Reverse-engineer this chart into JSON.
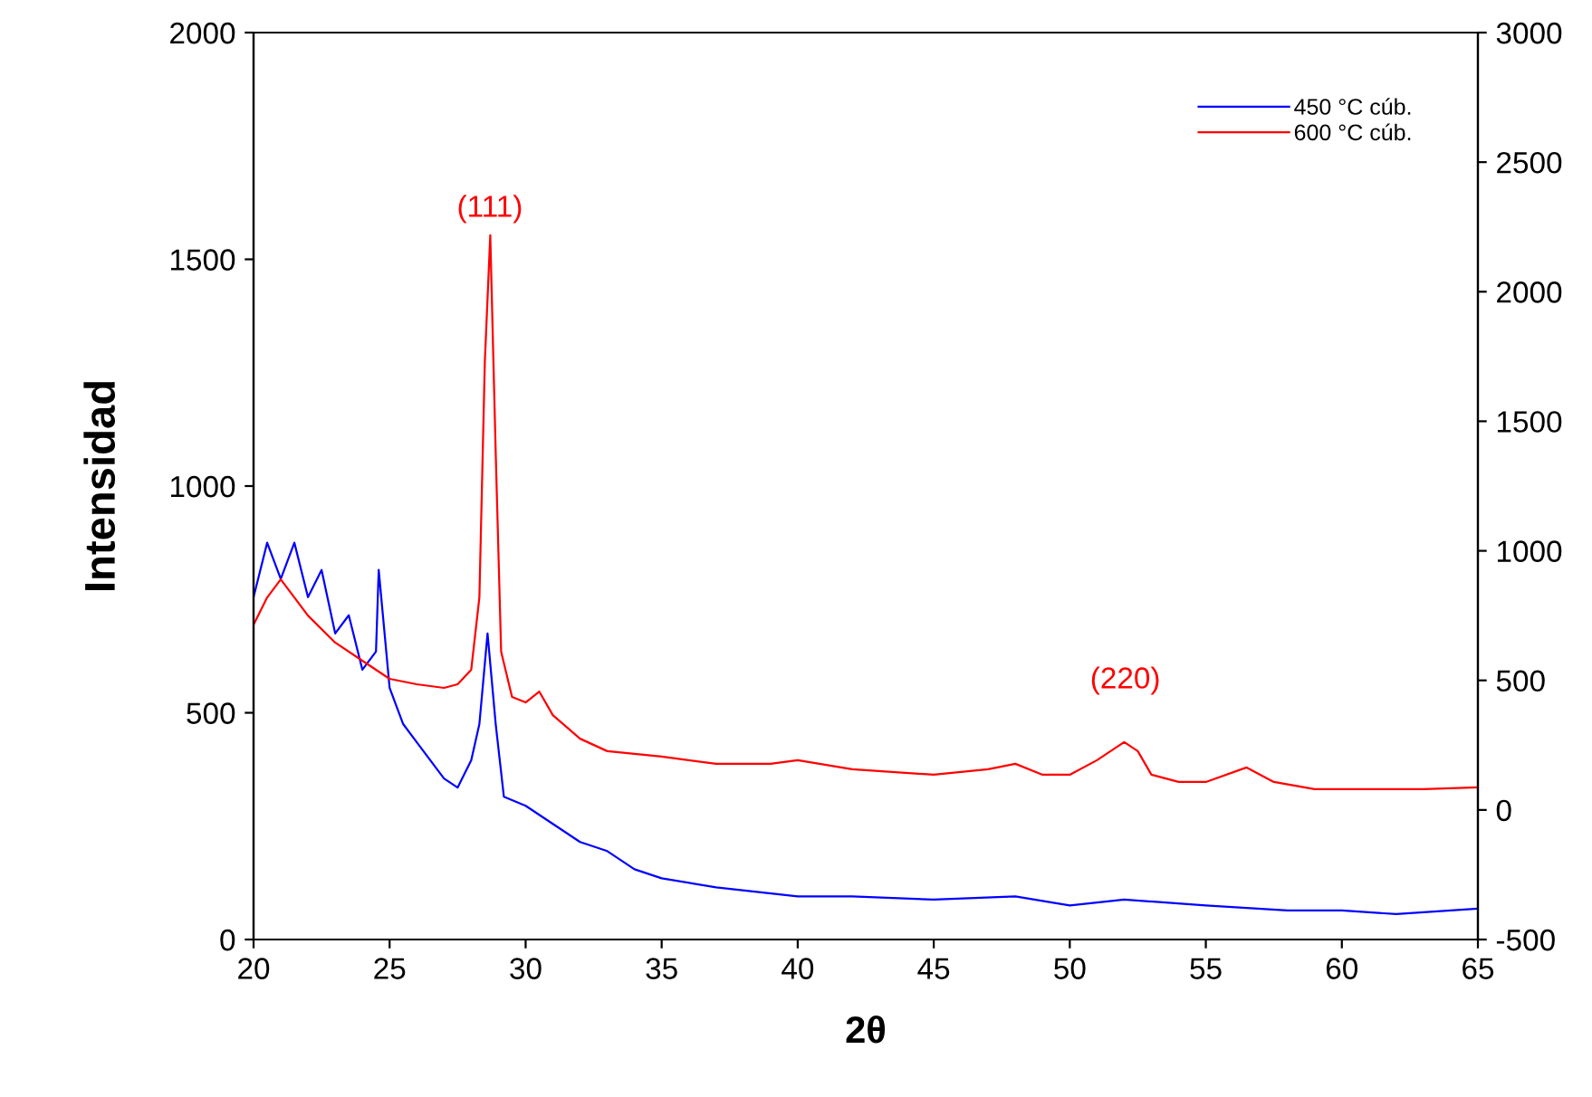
{
  "chart_data": {
    "type": "line",
    "xlabel": "2θ",
    "ylabel": "Intensidad",
    "xlim": [
      20,
      65
    ],
    "xticks": [
      20,
      25,
      30,
      35,
      40,
      45,
      50,
      55,
      60,
      65
    ],
    "ylim": [
      0,
      2000
    ],
    "yticks": [
      0,
      500,
      1000,
      1500,
      2000
    ],
    "y2lim": [
      -500,
      3000
    ],
    "y2ticks": [
      -500,
      0,
      500,
      1000,
      1500,
      2000,
      2500,
      3000
    ],
    "legend": "top right",
    "grid": false,
    "marker": "none",
    "line_style": "solid",
    "annotations": [
      "(111)",
      "(220)"
    ],
    "series": [
      {
        "name": "450 °C cúb.",
        "color": "#0000ff",
        "x": [
          20,
          20.5,
          21,
          21.5,
          22,
          22.5,
          23,
          23.5,
          24,
          24.5,
          24.6,
          25,
          25.5,
          26,
          26.5,
          27,
          27.5,
          28,
          28.3,
          28.6,
          28.9,
          29.2,
          30,
          31,
          32,
          33,
          34,
          35,
          37,
          40,
          42,
          45,
          48,
          50,
          52,
          55,
          58,
          60,
          62,
          65
        ],
        "values": [
          755,
          875,
          795,
          875,
          755,
          815,
          675,
          715,
          595,
          635,
          815,
          555,
          475,
          435,
          395,
          355,
          335,
          395,
          475,
          675,
          475,
          315,
          295,
          255,
          215,
          195,
          155,
          135,
          115,
          95,
          95,
          88,
          95,
          75,
          88,
          75,
          64,
          64,
          56,
          68
        ]
      },
      {
        "name": "600 °C cúb.",
        "color": "#ff0000",
        "axis": "y2",
        "x": [
          20,
          20.5,
          21,
          21.5,
          22,
          23,
          24,
          25,
          26,
          27,
          27.5,
          28,
          28.3,
          28.5,
          28.7,
          28.9,
          29.1,
          29.5,
          30,
          30.5,
          31,
          32,
          33,
          35,
          37,
          39,
          40,
          42,
          45,
          47,
          48,
          49,
          50,
          51,
          52,
          52.5,
          53,
          54,
          55,
          56.5,
          57.5,
          59,
          61,
          63,
          65
        ],
        "values": [
          715,
          820,
          890,
          820,
          750,
          646,
          576,
          506,
          485,
          471,
          485,
          541,
          820,
          1729,
          2218,
          1379,
          611,
          436,
          415,
          457,
          366,
          275,
          227,
          206,
          178,
          178,
          192,
          157,
          136,
          157,
          178,
          136,
          136,
          192,
          262,
          227,
          136,
          108,
          108,
          164,
          108,
          80,
          80,
          80,
          87
        ]
      }
    ]
  }
}
